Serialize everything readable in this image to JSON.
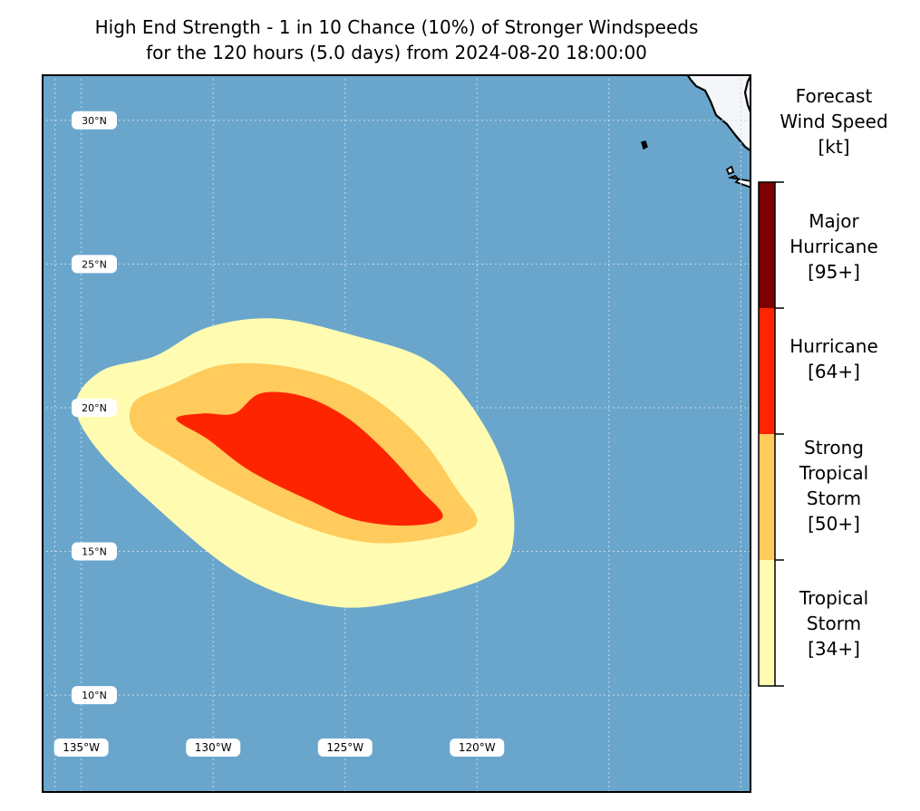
{
  "title": {
    "line1": "High End Strength - 1 in 10 Chance (10%) of Stronger Windspeeds",
    "line2": "for the 120 hours (5.0 days) from 2024-08-20 18:00:00"
  },
  "map": {
    "lon_range": [
      -136.5,
      -109.6
    ],
    "lat_range": [
      6.6,
      31.6
    ],
    "lat_labels": [
      "30°N",
      "25°N",
      "20°N",
      "15°N",
      "10°N"
    ],
    "lat_values": [
      30,
      25,
      20,
      15,
      10
    ],
    "lon_labels": [
      "135°W",
      "130°W",
      "125°W",
      "120°W"
    ],
    "lon_values": [
      -135,
      -130,
      -125,
      -120
    ],
    "colors": {
      "ocean": "#6aa6cc",
      "land": "#f4f6f9",
      "coast": "#000000",
      "grid": "#c8d8e6"
    }
  },
  "wind_zones": [
    {
      "name": "Tropical Storm",
      "color": "#fffcb2",
      "outline_lonlat": [
        [
          -132.2,
          21.8
        ],
        [
          -130.2,
          22.8
        ],
        [
          -127.6,
          23.1
        ],
        [
          -124.6,
          22.5
        ],
        [
          -122.0,
          21.7
        ],
        [
          -120.4,
          20.3
        ],
        [
          -119.0,
          18.0
        ],
        [
          -118.6,
          15.6
        ],
        [
          -119.4,
          14.2
        ],
        [
          -122.6,
          13.3
        ],
        [
          -125.6,
          13.1
        ],
        [
          -129.0,
          14.2
        ],
        [
          -132.6,
          16.9
        ],
        [
          -134.6,
          18.8
        ],
        [
          -135.2,
          20.2
        ],
        [
          -134.2,
          21.3
        ]
      ]
    },
    {
      "name": "Strong Tropical Storm",
      "color": "#fecb5c",
      "outline_lonlat": [
        [
          -131.6,
          20.8
        ],
        [
          -129.6,
          21.5
        ],
        [
          -127.0,
          21.4
        ],
        [
          -124.4,
          20.6
        ],
        [
          -122.2,
          19.0
        ],
        [
          -120.8,
          17.2
        ],
        [
          -120.0,
          16.0
        ],
        [
          -121.4,
          15.5
        ],
        [
          -124.0,
          15.3
        ],
        [
          -126.6,
          15.9
        ],
        [
          -129.6,
          17.2
        ],
        [
          -131.6,
          18.3
        ],
        [
          -133.0,
          19.2
        ],
        [
          -133.0,
          20.2
        ]
      ]
    },
    {
      "name": "Hurricane",
      "color": "#fe2400",
      "outline_lonlat": [
        [
          -129.2,
          19.8
        ],
        [
          -128.2,
          20.5
        ],
        [
          -126.6,
          20.4
        ],
        [
          -125.0,
          19.7
        ],
        [
          -123.6,
          18.6
        ],
        [
          -122.2,
          17.2
        ],
        [
          -121.3,
          16.2
        ],
        [
          -122.6,
          15.9
        ],
        [
          -124.6,
          16.1
        ],
        [
          -126.4,
          16.8
        ],
        [
          -128.6,
          17.8
        ],
        [
          -130.2,
          18.9
        ],
        [
          -131.4,
          19.6
        ],
        [
          -130.4,
          19.8
        ]
      ]
    }
  ],
  "colorbar": {
    "title_lines": [
      "Forecast",
      "Wind Speed",
      "[kt]"
    ],
    "categories": [
      {
        "label": "Major\nHurricane\n[95+]",
        "color": "#7d0000"
      },
      {
        "label": "Hurricane\n[64+]",
        "color": "#fe2400"
      },
      {
        "label": "Strong\nTropical\nStorm\n[50+]",
        "color": "#fecb5c"
      },
      {
        "label": "Tropical\nStorm\n[34+]",
        "color": "#fffcb2"
      }
    ]
  }
}
